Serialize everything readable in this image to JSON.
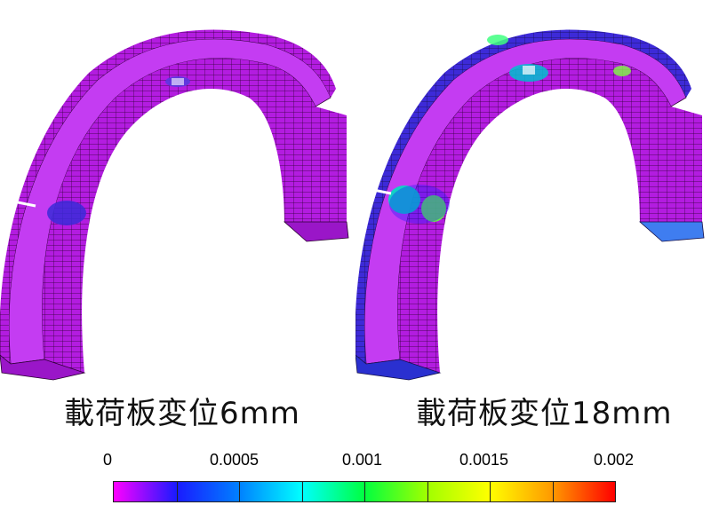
{
  "panels": [
    {
      "caption": "載荷板変位6mm",
      "state": "low-strain"
    },
    {
      "caption": "載荷板変位18mm",
      "state": "higher-strain"
    }
  ],
  "colorbar": {
    "ticks": [
      "0",
      "0.0005",
      "0.001",
      "0.0015",
      "0.002"
    ],
    "min": 0,
    "max": 0.002,
    "gradient": [
      "#ff00ff",
      "#1a1aff",
      "#0080ff",
      "#00ffff",
      "#00ff40",
      "#a0ff00",
      "#ffff00",
      "#ff9900",
      "#ff0000"
    ]
  },
  "colors": {
    "base": "#b020e8",
    "mesh": "#2a0030"
  }
}
